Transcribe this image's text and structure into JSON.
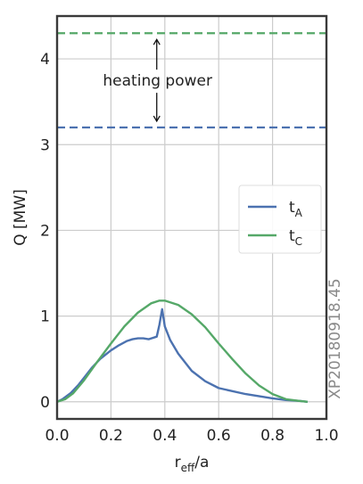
{
  "chart_data": {
    "type": "line",
    "xlabel": {
      "main": "r",
      "sub": "eff",
      "rest": "/a"
    },
    "ylabel": "Q [MW]",
    "xlim": [
      0.0,
      1.0
    ],
    "ylim": [
      -0.2,
      4.5
    ],
    "xticks": [
      0.0,
      0.2,
      0.4,
      0.6,
      0.8,
      1.0
    ],
    "xtick_labels": [
      "0.0",
      "0.2",
      "0.4",
      "0.6",
      "0.8",
      "1.0"
    ],
    "yticks": [
      0,
      1,
      2,
      3,
      4
    ],
    "ytick_labels": [
      "0",
      "1",
      "2",
      "3",
      "4"
    ],
    "grid": true,
    "legend_position": "center-right",
    "series": [
      {
        "name": {
          "main": "t",
          "sub": "A"
        },
        "color": "#4c72b0",
        "x": [
          0.0,
          0.02,
          0.05,
          0.08,
          0.1,
          0.13,
          0.16,
          0.2,
          0.23,
          0.26,
          0.28,
          0.3,
          0.32,
          0.34,
          0.35,
          0.37,
          0.38,
          0.39,
          0.4,
          0.42,
          0.45,
          0.5,
          0.55,
          0.6,
          0.7,
          0.8,
          0.85,
          0.9,
          0.93
        ],
        "y": [
          0.0,
          0.03,
          0.1,
          0.2,
          0.28,
          0.4,
          0.5,
          0.6,
          0.66,
          0.71,
          0.73,
          0.74,
          0.74,
          0.73,
          0.74,
          0.76,
          0.9,
          1.08,
          0.88,
          0.72,
          0.56,
          0.36,
          0.24,
          0.16,
          0.09,
          0.04,
          0.02,
          0.01,
          0.0
        ]
      },
      {
        "name": {
          "main": "t",
          "sub": "C"
        },
        "color": "#55a868",
        "x": [
          0.0,
          0.03,
          0.06,
          0.1,
          0.15,
          0.2,
          0.25,
          0.3,
          0.35,
          0.38,
          0.4,
          0.45,
          0.5,
          0.55,
          0.6,
          0.65,
          0.7,
          0.75,
          0.8,
          0.85,
          0.9,
          0.93
        ],
        "y": [
          0.0,
          0.03,
          0.1,
          0.25,
          0.47,
          0.68,
          0.88,
          1.04,
          1.15,
          1.18,
          1.18,
          1.13,
          1.02,
          0.87,
          0.68,
          0.5,
          0.33,
          0.19,
          0.09,
          0.03,
          0.01,
          0.0
        ]
      }
    ],
    "hlines": [
      {
        "y": 4.3,
        "color": "#55a868",
        "style": "dashed"
      },
      {
        "y": 3.2,
        "color": "#4c72b0",
        "style": "dashed"
      }
    ],
    "annotation": {
      "text": "heating power",
      "x": 0.35,
      "y": 3.75,
      "arrow_up_to": 4.3,
      "arrow_down_to": 3.2
    },
    "side_label": "XP20180918.45"
  }
}
